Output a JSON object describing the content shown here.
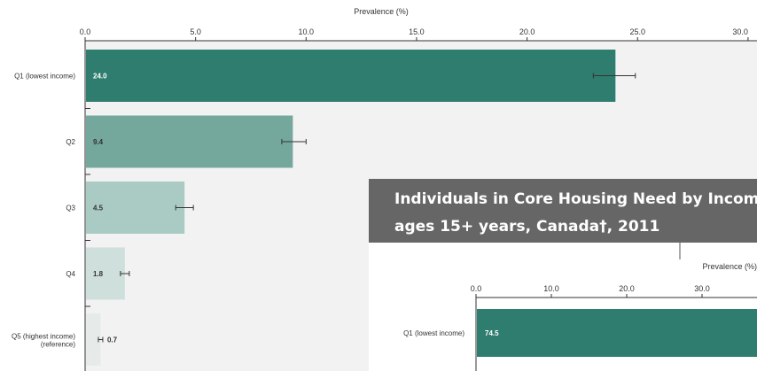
{
  "chart_data": [
    {
      "type": "bar",
      "orientation": "horizontal",
      "xlabel": "Prevalence (%)",
      "xlim": [
        0,
        30
      ],
      "xticks": [
        "0.0",
        "5.0",
        "10.0",
        "15.0",
        "20.0",
        "25.0",
        "30.0"
      ],
      "categories": [
        "Q1 (lowest income)",
        "Q2",
        "Q3",
        "Q4",
        "Q5 (highest income)"
      ],
      "category_sublabels": [
        "",
        "",
        "",
        "",
        "(reference)"
      ],
      "values": [
        24.0,
        9.4,
        4.5,
        1.8,
        0.7
      ],
      "value_labels": [
        "24.0",
        "9.4",
        "4.5",
        "1.8",
        "0.7"
      ],
      "error_low": [
        23.0,
        8.9,
        4.1,
        1.6,
        0.6
      ],
      "error_high": [
        24.9,
        10.0,
        4.9,
        2.0,
        0.8
      ],
      "colors": [
        "#2e7d6e",
        "#74a89c",
        "#aacbc4",
        "#cfdfdb",
        "#e6ebea"
      ],
      "grid": false
    },
    {
      "type": "bar",
      "orientation": "horizontal",
      "title_line1": "Individuals in Core Housing Need by Income C",
      "title_line2": "ages 15+ years, Canada†, 2011",
      "xlabel": "Prevalence (%)",
      "xlim": [
        0,
        30
      ],
      "xticks": [
        "0.0",
        "10.0",
        "20.0",
        "30.0"
      ],
      "categories": [
        "Q1 (lowest income)"
      ],
      "values": [
        74.5
      ],
      "value_labels": [
        "74.5"
      ],
      "colors": [
        "#2e7d6e"
      ]
    }
  ]
}
